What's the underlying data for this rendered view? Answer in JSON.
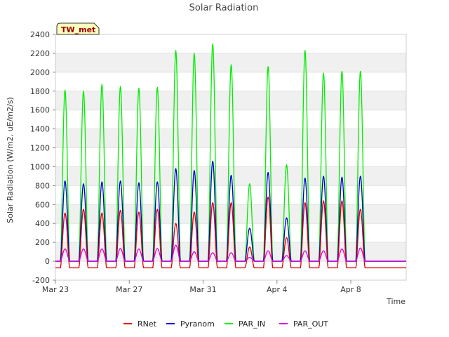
{
  "chart_data": {
    "type": "line",
    "title": "Solar Radiation",
    "xlabel": "Time",
    "ylabel": "Solar Radiation (W/m2, uE/m2/s)",
    "ylim": [
      -200,
      2400
    ],
    "yticks": [
      -200,
      0,
      200,
      400,
      600,
      800,
      1000,
      1200,
      1400,
      1600,
      1800,
      2000,
      2200,
      2400
    ],
    "xlim": [
      "2024-03-23",
      "2024-04-11"
    ],
    "xticks": [
      {
        "date": "2024-03-23",
        "label": "Mar 23"
      },
      {
        "date": "2024-03-27",
        "label": "Mar 27"
      },
      {
        "date": "2024-03-31",
        "label": "Mar 31"
      },
      {
        "date": "2024-04-04",
        "label": "Apr 4"
      },
      {
        "date": "2024-04-08",
        "label": "Apr 8"
      }
    ],
    "grid": "horizontal alternating bands",
    "legend_position": "bottom",
    "station_label": "TW_met",
    "days": [
      "2024-03-23",
      "2024-03-24",
      "2024-03-25",
      "2024-03-26",
      "2024-03-27",
      "2024-03-28",
      "2024-03-29",
      "2024-03-30",
      "2024-03-31",
      "2024-04-01",
      "2024-04-02",
      "2024-04-03",
      "2024-04-04",
      "2024-04-05",
      "2024-04-06",
      "2024-04-07",
      "2024-04-08",
      "2024-04-09",
      "2024-04-10"
    ],
    "series": [
      {
        "name": "RNet",
        "color": "#dd0000",
        "daily_peak": [
          510,
          550,
          510,
          540,
          520,
          550,
          400,
          520,
          620,
          620,
          150,
          680,
          250,
          620,
          640,
          640,
          550,
          0,
          0
        ],
        "night_value": -70
      },
      {
        "name": "Pyranom",
        "color": "#0000cc",
        "daily_peak": [
          850,
          820,
          840,
          850,
          830,
          840,
          980,
          960,
          1060,
          910,
          350,
          940,
          460,
          880,
          900,
          890,
          900,
          0,
          0
        ],
        "night_value": 0
      },
      {
        "name": "PAR_IN",
        "color": "#00ee00",
        "daily_peak": [
          1810,
          1800,
          1870,
          1850,
          1830,
          1840,
          2230,
          2200,
          2300,
          2080,
          820,
          2060,
          1020,
          2230,
          1990,
          2010,
          2010,
          0,
          0
        ],
        "night_value": 0
      },
      {
        "name": "PAR_OUT",
        "color": "#dd00dd",
        "daily_peak": [
          130,
          130,
          130,
          135,
          130,
          135,
          170,
          100,
          90,
          90,
          40,
          110,
          60,
          110,
          110,
          130,
          140,
          0,
          0
        ],
        "night_value": 0
      }
    ]
  }
}
